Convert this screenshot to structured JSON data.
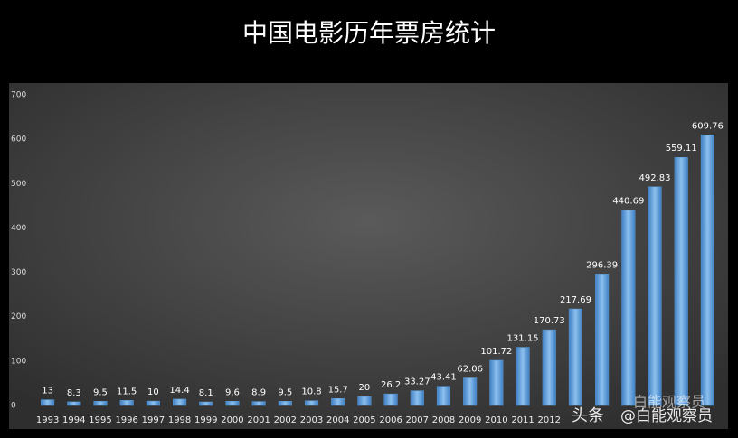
{
  "chart_data": {
    "type": "bar",
    "title": "中国电影历年票房统计",
    "categories": [
      "1993",
      "1994",
      "1995",
      "1996",
      "1997",
      "1998",
      "1999",
      "2000",
      "2001",
      "2002",
      "2003",
      "2004",
      "2005",
      "2006",
      "2007",
      "2008",
      "2009",
      "2010",
      "2011",
      "2012",
      null,
      null,
      null,
      null,
      null,
      null
    ],
    "values": [
      13,
      8.3,
      9.5,
      11.5,
      10,
      14.4,
      8.1,
      9.6,
      8.9,
      9.5,
      10.8,
      15.7,
      20,
      26.2,
      33.27,
      43.41,
      62.06,
      101.72,
      131.15,
      170.73,
      217.69,
      296.39,
      440.69,
      492.83,
      559.11,
      609.76
    ],
    "color": "#5b9bd5",
    "ylim": [
      0,
      700
    ],
    "yticks": [
      0,
      100,
      200,
      300,
      400,
      500,
      600,
      700
    ],
    "grid": false
  },
  "watermark": {
    "source": "头条",
    "handle": "@白能观察员",
    "logo_text": "白能观察员"
  }
}
